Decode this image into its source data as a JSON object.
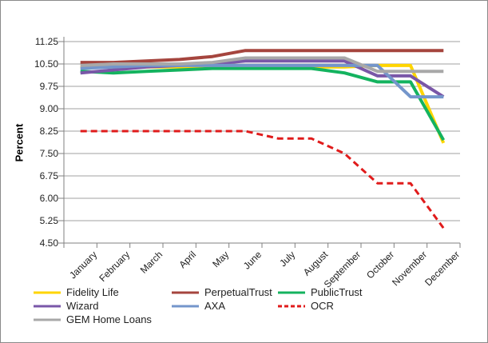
{
  "chart_data": {
    "type": "line",
    "title": "",
    "ylabel": "Percent",
    "xlabel": "",
    "ylim": [
      4.5,
      11.25
    ],
    "ytick_step": 0.75,
    "ytick_labels": [
      "11.25",
      "10.50",
      "9.75",
      "9.00",
      "8.25",
      "7.50",
      "6.75",
      "6.00",
      "5.25",
      "4.50"
    ],
    "grid": true,
    "legend_position": "bottom",
    "categories": [
      "January",
      "February",
      "March",
      "April",
      "May",
      "June",
      "July",
      "August",
      "September",
      "October",
      "November",
      "December"
    ],
    "series": [
      {
        "name": "Fidelity Life",
        "color": "#FFD500",
        "dash": false,
        "values": [
          10.4,
          10.4,
          10.4,
          10.4,
          10.4,
          10.4,
          10.4,
          10.4,
          10.4,
          10.45,
          10.45,
          7.85
        ]
      },
      {
        "name": "PerpetualTrust",
        "color": "#A5453E",
        "dash": false,
        "values": [
          10.55,
          10.55,
          10.6,
          10.65,
          10.75,
          10.95,
          10.95,
          10.95,
          10.95,
          10.95,
          10.95,
          10.95
        ]
      },
      {
        "name": "PublicTrust",
        "color": "#14B35F",
        "dash": false,
        "values": [
          10.25,
          10.2,
          10.25,
          10.3,
          10.35,
          10.35,
          10.35,
          10.35,
          10.2,
          9.9,
          9.9,
          7.95
        ]
      },
      {
        "name": "Wizard",
        "color": "#7A57A8",
        "dash": false,
        "values": [
          10.2,
          10.3,
          10.4,
          10.45,
          10.5,
          10.6,
          10.6,
          10.6,
          10.6,
          10.1,
          10.1,
          9.4
        ]
      },
      {
        "name": "AXA",
        "color": "#7496CB",
        "dash": false,
        "values": [
          10.35,
          10.4,
          10.45,
          10.45,
          10.45,
          10.45,
          10.45,
          10.45,
          10.45,
          10.45,
          9.4,
          9.4
        ]
      },
      {
        "name": "OCR",
        "color": "#E01B1B",
        "dash": true,
        "values": [
          8.25,
          8.25,
          8.25,
          8.25,
          8.25,
          8.25,
          8.0,
          8.0,
          7.5,
          6.5,
          6.5,
          5.0
        ]
      },
      {
        "name": "GEM Home Loans",
        "color": "#A8A8A8",
        "dash": false,
        "values": [
          10.45,
          10.5,
          10.5,
          10.5,
          10.55,
          10.7,
          10.7,
          10.7,
          10.7,
          10.25,
          10.25,
          10.25
        ]
      }
    ],
    "axis_color": "#808080",
    "gridline_color": "#A0A0A0"
  }
}
